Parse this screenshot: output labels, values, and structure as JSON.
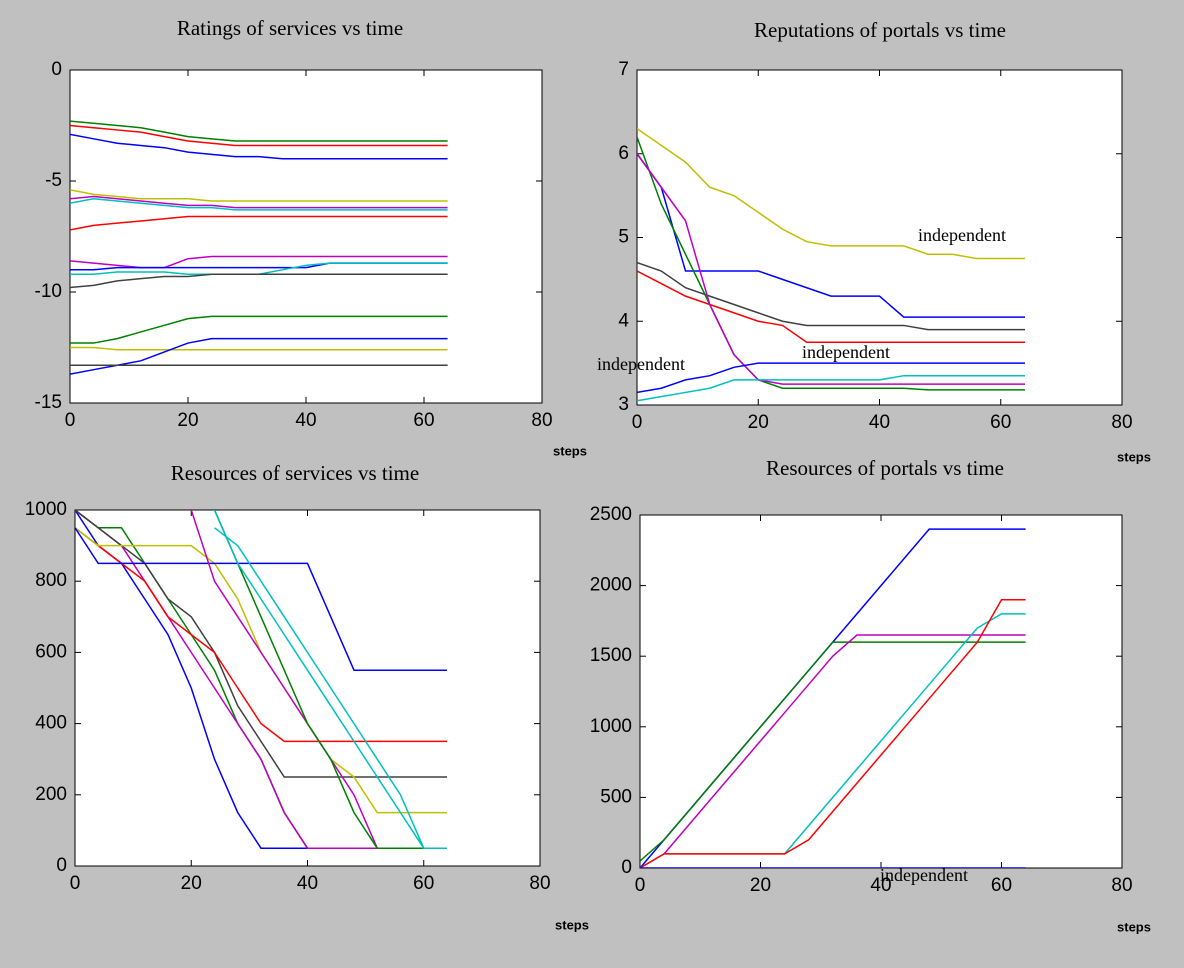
{
  "chart_data": [
    {
      "type": "line",
      "title": "Ratings of services vs time",
      "x_label": "steps",
      "x": [
        0,
        4,
        8,
        12,
        16,
        20,
        24,
        28,
        32,
        36,
        40,
        44,
        48,
        52,
        56,
        60,
        64
      ],
      "xlim": [
        0,
        80
      ],
      "xticks": [
        0,
        20,
        40,
        60,
        80
      ],
      "ylim": [
        -15,
        0
      ],
      "yticks": [
        -15,
        -10,
        -5,
        0
      ],
      "series": [
        {
          "color": "#008000",
          "values": [
            -2.3,
            -2.4,
            -2.5,
            -2.6,
            -2.8,
            -3.0,
            -3.1,
            -3.2,
            -3.2,
            -3.2,
            -3.2,
            -3.2,
            -3.2,
            -3.2,
            -3.2,
            -3.2,
            -3.2
          ]
        },
        {
          "color": "#ff0000",
          "values": [
            -2.5,
            -2.6,
            -2.7,
            -2.8,
            -3.0,
            -3.2,
            -3.3,
            -3.4,
            -3.4,
            -3.4,
            -3.4,
            -3.4,
            -3.4,
            -3.4,
            -3.4,
            -3.4,
            -3.4
          ]
        },
        {
          "color": "#0000ff",
          "values": [
            -2.9,
            -3.1,
            -3.3,
            -3.4,
            -3.5,
            -3.7,
            -3.8,
            -3.9,
            -3.9,
            -4.0,
            -4.0,
            -4.0,
            -4.0,
            -4.0,
            -4.0,
            -4.0,
            -4.0
          ]
        },
        {
          "color": "#bfbf00",
          "values": [
            -5.4,
            -5.6,
            -5.7,
            -5.8,
            -5.8,
            -5.8,
            -5.9,
            -5.9,
            -5.9,
            -5.9,
            -5.9,
            -5.9,
            -5.9,
            -5.9,
            -5.9,
            -5.9,
            -5.9
          ]
        },
        {
          "color": "#bf00bf",
          "values": [
            -5.8,
            -5.7,
            -5.8,
            -5.9,
            -6.0,
            -6.1,
            -6.1,
            -6.2,
            -6.2,
            -6.2,
            -6.2,
            -6.2,
            -6.2,
            -6.2,
            -6.2,
            -6.2,
            -6.2
          ]
        },
        {
          "color": "#00bfbf",
          "values": [
            -6.0,
            -5.8,
            -5.9,
            -6.0,
            -6.1,
            -6.2,
            -6.2,
            -6.3,
            -6.3,
            -6.3,
            -6.3,
            -6.3,
            -6.3,
            -6.3,
            -6.3,
            -6.3,
            -6.3
          ]
        },
        {
          "color": "#ff0000",
          "values": [
            -7.2,
            -7.0,
            -6.9,
            -6.8,
            -6.7,
            -6.6,
            -6.6,
            -6.6,
            -6.6,
            -6.6,
            -6.6,
            -6.6,
            -6.6,
            -6.6,
            -6.6,
            -6.6,
            -6.6
          ]
        },
        {
          "color": "#bf00bf",
          "values": [
            -8.6,
            -8.7,
            -8.8,
            -8.9,
            -8.9,
            -8.5,
            -8.4,
            -8.4,
            -8.4,
            -8.4,
            -8.4,
            -8.4,
            -8.4,
            -8.4,
            -8.4,
            -8.4,
            -8.4
          ]
        },
        {
          "color": "#0000ff",
          "values": [
            -9.0,
            -9.0,
            -8.9,
            -8.9,
            -8.9,
            -8.9,
            -8.9,
            -8.9,
            -8.9,
            -8.9,
            -8.9,
            -8.7,
            -8.7,
            -8.7,
            -8.7,
            -8.7,
            -8.7
          ]
        },
        {
          "color": "#00bfbf",
          "values": [
            -9.2,
            -9.2,
            -9.1,
            -9.1,
            -9.1,
            -9.2,
            -9.2,
            -9.2,
            -9.2,
            -9.0,
            -8.8,
            -8.7,
            -8.7,
            -8.7,
            -8.7,
            -8.7,
            -8.7
          ]
        },
        {
          "color": "#404040",
          "values": [
            -9.8,
            -9.7,
            -9.5,
            -9.4,
            -9.3,
            -9.3,
            -9.2,
            -9.2,
            -9.2,
            -9.2,
            -9.2,
            -9.2,
            -9.2,
            -9.2,
            -9.2,
            -9.2,
            -9.2
          ]
        },
        {
          "color": "#008000",
          "values": [
            -12.3,
            -12.3,
            -12.1,
            -11.8,
            -11.5,
            -11.2,
            -11.1,
            -11.1,
            -11.1,
            -11.1,
            -11.1,
            -11.1,
            -11.1,
            -11.1,
            -11.1,
            -11.1,
            -11.1
          ]
        },
        {
          "color": "#bfbf00",
          "values": [
            -12.5,
            -12.5,
            -12.6,
            -12.6,
            -12.6,
            -12.6,
            -12.6,
            -12.6,
            -12.6,
            -12.6,
            -12.6,
            -12.6,
            -12.6,
            -12.6,
            -12.6,
            -12.6,
            -12.6
          ]
        },
        {
          "color": "#0000ff",
          "values": [
            -13.7,
            -13.5,
            -13.3,
            -13.1,
            -12.7,
            -12.3,
            -12.1,
            -12.1,
            -12.1,
            -12.1,
            -12.1,
            -12.1,
            -12.1,
            -12.1,
            -12.1,
            -12.1,
            -12.1
          ]
        },
        {
          "color": "#404040",
          "values": [
            -13.3,
            -13.3,
            -13.3,
            -13.3,
            -13.3,
            -13.3,
            -13.3,
            -13.3,
            -13.3,
            -13.3,
            -13.3,
            -13.3,
            -13.3,
            -13.3,
            -13.3,
            -13.3,
            -13.3
          ]
        }
      ]
    },
    {
      "type": "line",
      "title": "Reputations of portals vs time",
      "x_label": "steps",
      "x": [
        0,
        4,
        8,
        12,
        16,
        20,
        24,
        28,
        32,
        36,
        40,
        44,
        48,
        52,
        56,
        60,
        64
      ],
      "xlim": [
        0,
        80
      ],
      "xticks": [
        0,
        20,
        40,
        60,
        80
      ],
      "ylim": [
        3,
        7
      ],
      "yticks": [
        3,
        4,
        5,
        6,
        7
      ],
      "annotations": [
        "independent",
        "independent",
        "independent"
      ],
      "series": [
        {
          "color": "#bfbf00",
          "values": [
            6.3,
            6.1,
            5.9,
            5.6,
            5.5,
            5.3,
            5.1,
            4.95,
            4.9,
            4.9,
            4.9,
            4.9,
            4.8,
            4.8,
            4.75,
            4.75,
            4.75
          ]
        },
        {
          "color": "#0000ff",
          "values": [
            6.0,
            5.6,
            4.6,
            4.6,
            4.6,
            4.6,
            4.5,
            4.4,
            4.3,
            4.3,
            4.3,
            4.05,
            4.05,
            4.05,
            4.05,
            4.05,
            4.05
          ]
        },
        {
          "color": "#404040",
          "values": [
            4.7,
            4.6,
            4.4,
            4.3,
            4.2,
            4.1,
            4.0,
            3.95,
            3.95,
            3.95,
            3.95,
            3.95,
            3.9,
            3.9,
            3.9,
            3.9,
            3.9
          ]
        },
        {
          "color": "#ff0000",
          "values": [
            4.6,
            4.45,
            4.3,
            4.2,
            4.1,
            4.0,
            3.95,
            3.75,
            3.75,
            3.75,
            3.75,
            3.75,
            3.75,
            3.75,
            3.75,
            3.75,
            3.75
          ]
        },
        {
          "color": "#008000",
          "values": [
            6.2,
            5.4,
            4.8,
            4.2,
            3.6,
            3.3,
            3.2,
            3.2,
            3.2,
            3.2,
            3.2,
            3.2,
            3.18,
            3.18,
            3.18,
            3.18,
            3.18
          ]
        },
        {
          "color": "#bf00bf",
          "values": [
            6.0,
            5.6,
            5.2,
            4.2,
            3.6,
            3.3,
            3.25,
            3.25,
            3.25,
            3.25,
            3.25,
            3.25,
            3.25,
            3.25,
            3.25,
            3.25,
            3.25
          ]
        },
        {
          "color": "#0000ff",
          "values": [
            3.15,
            3.2,
            3.3,
            3.35,
            3.45,
            3.5,
            3.5,
            3.5,
            3.5,
            3.5,
            3.5,
            3.5,
            3.5,
            3.5,
            3.5,
            3.5,
            3.5
          ]
        },
        {
          "color": "#00bfbf",
          "values": [
            3.05,
            3.1,
            3.15,
            3.2,
            3.3,
            3.3,
            3.3,
            3.3,
            3.3,
            3.3,
            3.3,
            3.35,
            3.35,
            3.35,
            3.35,
            3.35,
            3.35
          ]
        }
      ]
    },
    {
      "type": "line",
      "title": "Resources of services vs time",
      "x_label": "steps",
      "x": [
        0,
        4,
        8,
        12,
        16,
        20,
        24,
        28,
        32,
        36,
        40,
        44,
        48,
        52,
        56,
        60,
        64
      ],
      "xlim": [
        0,
        80
      ],
      "xticks": [
        0,
        20,
        40,
        60,
        80
      ],
      "ylim": [
        0,
        1000
      ],
      "yticks": [
        0,
        200,
        400,
        600,
        800,
        1000
      ],
      "series": [
        {
          "color": "#0000ff",
          "values": [
            1000,
            900,
            850,
            750,
            650,
            500,
            300,
            150,
            50,
            50,
            50,
            50,
            50,
            50,
            50,
            50,
            50
          ]
        },
        {
          "color": "#008000",
          "values": [
            1000,
            950,
            950,
            850,
            750,
            650,
            550,
            400,
            300,
            150,
            50,
            50,
            50,
            50,
            50,
            50,
            50
          ]
        },
        {
          "color": "#bf00bf",
          "values": [
            1000,
            950,
            900,
            800,
            700,
            600,
            500,
            400,
            300,
            150,
            50,
            50,
            50,
            50,
            50,
            50,
            50
          ]
        },
        {
          "color": "#404040",
          "values": [
            1000,
            950,
            900,
            850,
            750,
            700,
            600,
            450,
            350,
            250,
            250,
            250,
            250,
            250,
            250,
            250,
            250
          ]
        },
        {
          "color": "#ff0000",
          "values": [
            950,
            900,
            850,
            800,
            700,
            650,
            600,
            500,
            400,
            350,
            350,
            350,
            350,
            350,
            350,
            350,
            350
          ]
        },
        {
          "color": "#bfbf00",
          "values": [
            950,
            900,
            900,
            900,
            900,
            900,
            850,
            750,
            600,
            500,
            400,
            300,
            250,
            150,
            150,
            150,
            150
          ]
        },
        {
          "color": "#0000ff",
          "values": [
            950,
            850,
            850,
            850,
            850,
            850,
            850,
            850,
            850,
            850,
            850,
            700,
            550,
            550,
            550,
            550,
            550
          ]
        },
        {
          "color": "#bf00bf",
          "values": [
            null,
            null,
            null,
            null,
            null,
            1000,
            800,
            700,
            600,
            500,
            400,
            300,
            200,
            50,
            50,
            50,
            50
          ]
        },
        {
          "color": "#008000",
          "values": [
            null,
            null,
            null,
            null,
            null,
            null,
            1000,
            850,
            700,
            550,
            400,
            300,
            150,
            50,
            50,
            50,
            50
          ]
        },
        {
          "color": "#00bfbf",
          "values": [
            null,
            null,
            null,
            null,
            null,
            null,
            1000,
            850,
            750,
            650,
            550,
            450,
            350,
            250,
            150,
            50,
            50
          ]
        },
        {
          "color": "#00bfbf",
          "values": [
            null,
            null,
            null,
            null,
            null,
            null,
            950,
            900,
            800,
            700,
            600,
            500,
            400,
            300,
            200,
            50,
            50
          ]
        }
      ]
    },
    {
      "type": "line",
      "title": "Resources of portals vs time",
      "x_label": "steps",
      "x": [
        0,
        4,
        8,
        12,
        16,
        20,
        24,
        28,
        32,
        36,
        40,
        44,
        48,
        52,
        56,
        60,
        64
      ],
      "xlim": [
        0,
        80
      ],
      "xticks": [
        0,
        20,
        40,
        60,
        80
      ],
      "ylim": [
        0,
        2500
      ],
      "yticks": [
        0,
        500,
        1000,
        1500,
        2000,
        2500
      ],
      "annotations": [
        "independent"
      ],
      "series": [
        {
          "color": "#0000ff",
          "values": [
            0,
            200,
            400,
            600,
            800,
            1000,
            1200,
            1400,
            1600,
            1800,
            2000,
            2200,
            2400,
            2400,
            2400,
            2400,
            2400
          ]
        },
        {
          "color": "#008000",
          "values": [
            50,
            200,
            400,
            600,
            800,
            1000,
            1200,
            1400,
            1600,
            1600,
            1600,
            1600,
            1600,
            1600,
            1600,
            1600,
            1600
          ]
        },
        {
          "color": "#bf00bf",
          "values": [
            null,
            100,
            300,
            500,
            700,
            900,
            1100,
            1300,
            1500,
            1650,
            1650,
            1650,
            1650,
            1650,
            1650,
            1650,
            1650
          ]
        },
        {
          "color": "#00bfbf",
          "values": [
            0,
            100,
            100,
            100,
            100,
            100,
            100,
            300,
            500,
            700,
            900,
            1100,
            1300,
            1500,
            1700,
            1800,
            1800
          ]
        },
        {
          "color": "#ff0000",
          "values": [
            0,
            100,
            100,
            100,
            100,
            100,
            100,
            200,
            400,
            600,
            800,
            1000,
            1200,
            1400,
            1600,
            1900,
            1900
          ]
        },
        {
          "color": "#0000ff",
          "values": [
            0,
            0,
            0,
            0,
            0,
            0,
            0,
            0,
            0,
            0,
            0,
            0,
            0,
            0,
            0,
            0,
            0
          ]
        }
      ]
    }
  ]
}
